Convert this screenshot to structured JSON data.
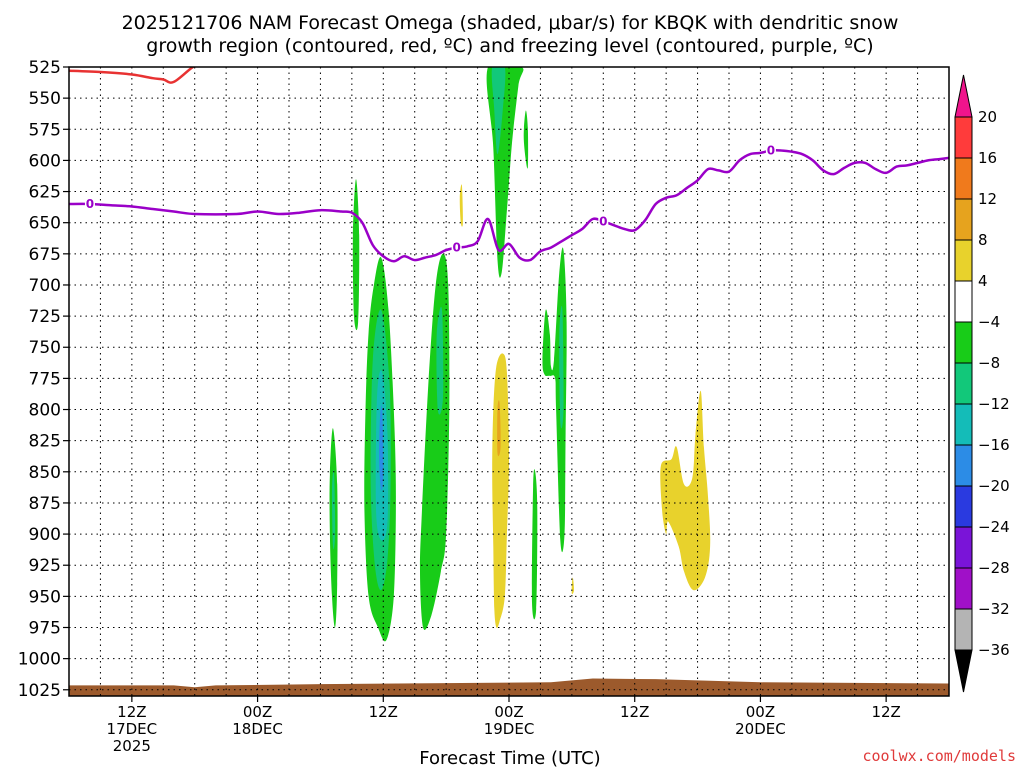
{
  "chart_data": {
    "type": "contour",
    "title_line1": "2025121706 NAM Forecast Omega (shaded, μbar/s) for KBQK with dendritic snow",
    "title_line2": "growth region (contoured, red, ºC) and freezing level (contoured, purple, ºC)",
    "xlabel": "Forecast Time (UTC)",
    "credit": "coolwx.com/models",
    "y_axis": {
      "ticks": [
        525,
        550,
        575,
        600,
        625,
        650,
        675,
        700,
        725,
        750,
        775,
        800,
        825,
        850,
        875,
        900,
        925,
        950,
        975,
        1000,
        1025
      ],
      "range": [
        525,
        1030
      ],
      "inverted": true,
      "grid": true
    },
    "x_axis": {
      "range_hours": [
        -6,
        78
      ],
      "ticks": [
        {
          "hour": 0,
          "l1": "12Z",
          "l2": "17DEC",
          "l3": "2025"
        },
        {
          "hour": 12,
          "l1": "00Z",
          "l2": "18DEC",
          "l3": ""
        },
        {
          "hour": 24,
          "l1": "12Z",
          "l2": "",
          "l3": ""
        },
        {
          "hour": 36,
          "l1": "00Z",
          "l2": "19DEC",
          "l3": ""
        },
        {
          "hour": 48,
          "l1": "12Z",
          "l2": "",
          "l3": ""
        },
        {
          "hour": 60,
          "l1": "00Z",
          "l2": "20DEC",
          "l3": ""
        },
        {
          "hour": 72,
          "l1": "12Z",
          "l2": "",
          "l3": ""
        }
      ],
      "grid": true
    },
    "colorbar": {
      "levels": [
        20,
        16,
        12,
        8,
        4,
        -4,
        -8,
        -12,
        -16,
        -20,
        -24,
        -28,
        -32,
        -36
      ],
      "colors": [
        "#ff3b3b",
        "#f07a1c",
        "#e6a31e",
        "#e8d22c",
        "#ffffff",
        "#18cc18",
        "#12c87a",
        "#14bcb8",
        "#2c8ce6",
        "#2a3ae0",
        "#7a14d8",
        "#a010c8",
        "#b4b4b4"
      ],
      "top_arrow_color": "#f0148c",
      "bottom_arrow_color": "#000000"
    },
    "freezing_level": {
      "label": "0",
      "color": "#9a00c8",
      "points": [
        [
          -6,
          635
        ],
        [
          -4,
          635
        ],
        [
          -2,
          636
        ],
        [
          0,
          637
        ],
        [
          2,
          639
        ],
        [
          4,
          641
        ],
        [
          6,
          643
        ],
        [
          10,
          643
        ],
        [
          12,
          641
        ],
        [
          14,
          643
        ],
        [
          16,
          642
        ],
        [
          18,
          640
        ],
        [
          20,
          641
        ],
        [
          21,
          642
        ],
        [
          22,
          650
        ],
        [
          23,
          668
        ],
        [
          24,
          677
        ],
        [
          25,
          681
        ],
        [
          26,
          677
        ],
        [
          27,
          680
        ],
        [
          28,
          678
        ],
        [
          29,
          676
        ],
        [
          30,
          672
        ],
        [
          31,
          670
        ],
        [
          32,
          669
        ],
        [
          33,
          665
        ],
        [
          34,
          647
        ],
        [
          35,
          672
        ],
        [
          36,
          667
        ],
        [
          37,
          678
        ],
        [
          38,
          680
        ],
        [
          39,
          673
        ],
        [
          40,
          670
        ],
        [
          41,
          665
        ],
        [
          42,
          660
        ],
        [
          43,
          655
        ],
        [
          44,
          647
        ],
        [
          45,
          649
        ],
        [
          46,
          652
        ],
        [
          47,
          655
        ],
        [
          48,
          656
        ],
        [
          49,
          648
        ],
        [
          50,
          635
        ],
        [
          51,
          630
        ],
        [
          52,
          628
        ],
        [
          53,
          622
        ],
        [
          54,
          616
        ],
        [
          55,
          607
        ],
        [
          56,
          608
        ],
        [
          57,
          609
        ],
        [
          58,
          600
        ],
        [
          59,
          595
        ],
        [
          60,
          594
        ],
        [
          61,
          592
        ],
        [
          62,
          592
        ],
        [
          63,
          593
        ],
        [
          64,
          595
        ],
        [
          65,
          600
        ],
        [
          66,
          608
        ],
        [
          67,
          611
        ],
        [
          68,
          606
        ],
        [
          69,
          602
        ],
        [
          70,
          602
        ],
        [
          71,
          607
        ],
        [
          72,
          610
        ],
        [
          73,
          605
        ],
        [
          74,
          604
        ],
        [
          75,
          602
        ],
        [
          76,
          600
        ],
        [
          77,
          599
        ],
        [
          78,
          598
        ]
      ]
    },
    "dgz_contour": {
      "color": "#e83232",
      "points": [
        [
          -6,
          528
        ],
        [
          -3,
          529
        ],
        [
          0,
          531
        ],
        [
          2,
          534
        ],
        [
          3,
          535
        ],
        [
          4,
          537
        ],
        [
          6,
          524
        ],
        [
          7,
          524
        ]
      ]
    },
    "omega_regions": [
      {
        "band": "-8",
        "pts": [
          [
            34.0,
            525
          ],
          [
            34.5,
            590
          ],
          [
            34.9,
            680
          ],
          [
            35.3,
            690
          ],
          [
            35.8,
            640
          ],
          [
            36.3,
            585
          ],
          [
            36.9,
            540
          ],
          [
            37.2,
            525
          ]
        ]
      },
      {
        "band": "-12",
        "pts": [
          [
            34.4,
            525
          ],
          [
            34.6,
            560
          ],
          [
            34.9,
            595
          ],
          [
            35.4,
            560
          ],
          [
            35.6,
            525
          ]
        ]
      },
      {
        "band": "-8",
        "pts": [
          [
            37.6,
            560
          ],
          [
            37.8,
            575
          ],
          [
            37.8,
            605
          ],
          [
            37.6,
            600
          ],
          [
            37.4,
            580
          ]
        ]
      },
      {
        "band": "-8",
        "pts": [
          [
            21.4,
            615
          ],
          [
            21.7,
            660
          ],
          [
            21.6,
            730
          ],
          [
            21.2,
            725
          ],
          [
            21.1,
            660
          ]
        ]
      },
      {
        "band": "-8",
        "pts": [
          [
            22.6,
            738
          ],
          [
            23.1,
            700
          ],
          [
            23.8,
            678
          ],
          [
            24.5,
            720
          ],
          [
            25.0,
            800
          ],
          [
            25.2,
            870
          ],
          [
            25.0,
            950
          ],
          [
            24.3,
            985
          ],
          [
            23.5,
            975
          ],
          [
            22.6,
            950
          ],
          [
            22.2,
            880
          ],
          [
            22.3,
            800
          ]
        ]
      },
      {
        "band": "-12",
        "pts": [
          [
            23.0,
            760
          ],
          [
            23.8,
            720
          ],
          [
            24.6,
            780
          ],
          [
            24.7,
            860
          ],
          [
            24.4,
            920
          ],
          [
            23.8,
            945
          ],
          [
            23.2,
            925
          ],
          [
            22.8,
            860
          ]
        ]
      },
      {
        "band": "-16",
        "pts": [
          [
            23.4,
            790
          ],
          [
            23.9,
            770
          ],
          [
            24.4,
            820
          ],
          [
            24.4,
            890
          ],
          [
            23.8,
            905
          ],
          [
            23.3,
            880
          ]
        ]
      },
      {
        "band": "-20",
        "pts": [
          [
            23.7,
            805
          ],
          [
            23.9,
            800
          ],
          [
            24.0,
            850
          ],
          [
            23.8,
            865
          ],
          [
            23.6,
            840
          ]
        ]
      },
      {
        "band": "-8",
        "pts": [
          [
            18.9,
            852
          ],
          [
            19.2,
            815
          ],
          [
            19.6,
            860
          ],
          [
            19.6,
            940
          ],
          [
            19.4,
            975
          ],
          [
            19.1,
            950
          ],
          [
            18.9,
            900
          ]
        ]
      },
      {
        "band": "-12",
        "pts": [
          [
            19.1,
            865
          ],
          [
            19.3,
            850
          ],
          [
            19.4,
            900
          ],
          [
            19.2,
            910
          ]
        ]
      },
      {
        "band": "-8",
        "pts": [
          [
            27.7,
            880
          ],
          [
            28.3,
            780
          ],
          [
            29.0,
            700
          ],
          [
            29.7,
            675
          ],
          [
            30.2,
            700
          ],
          [
            30.3,
            800
          ],
          [
            30.0,
            900
          ],
          [
            29.5,
            930
          ],
          [
            28.6,
            965
          ],
          [
            27.8,
            975
          ],
          [
            27.5,
            930
          ]
        ]
      },
      {
        "band": "-12",
        "pts": [
          [
            29.1,
            740
          ],
          [
            29.6,
            720
          ],
          [
            29.7,
            790
          ],
          [
            29.2,
            800
          ]
        ]
      },
      {
        "band": "-8",
        "pts": [
          [
            38.3,
            862
          ],
          [
            38.5,
            850
          ],
          [
            38.7,
            880
          ],
          [
            38.6,
            960
          ],
          [
            38.2,
            955
          ]
        ]
      },
      {
        "band": "-8",
        "pts": [
          [
            39.2,
            760
          ],
          [
            39.5,
            720
          ],
          [
            39.9,
            740
          ],
          [
            40.0,
            765
          ],
          [
            40.3,
            760
          ],
          [
            40.8,
            690
          ],
          [
            41.2,
            672
          ],
          [
            41.5,
            730
          ],
          [
            41.4,
            820
          ],
          [
            41.3,
            900
          ],
          [
            40.9,
            905
          ],
          [
            40.5,
            800
          ],
          [
            40.4,
            775
          ],
          [
            39.9,
            773
          ],
          [
            39.4,
            772
          ]
        ]
      },
      {
        "band": "-12",
        "pts": [
          [
            40.8,
            740
          ],
          [
            41.1,
            720
          ],
          [
            41.2,
            800
          ],
          [
            40.9,
            810
          ]
        ]
      },
      {
        "band": "4",
        "pts": [
          [
            34.8,
            765
          ],
          [
            35.4,
            755
          ],
          [
            35.8,
            770
          ],
          [
            36.0,
            840
          ],
          [
            35.8,
            900
          ],
          [
            35.6,
            950
          ],
          [
            35.1,
            970
          ],
          [
            34.8,
            975
          ],
          [
            34.6,
            960
          ],
          [
            34.5,
            910
          ],
          [
            34.4,
            850
          ],
          [
            34.5,
            800
          ]
        ]
      },
      {
        "band": "8",
        "pts": [
          [
            34.9,
            800
          ],
          [
            35.1,
            795
          ],
          [
            35.2,
            830
          ],
          [
            34.9,
            835
          ]
        ]
      },
      {
        "band": "4",
        "pts": [
          [
            31.3,
            630
          ],
          [
            31.5,
            620
          ],
          [
            31.6,
            650
          ],
          [
            31.4,
            650
          ]
        ]
      },
      {
        "band": "4",
        "pts": [
          [
            42.0,
            940
          ],
          [
            42.1,
            935
          ],
          [
            42.2,
            945
          ],
          [
            42.0,
            948
          ]
        ]
      },
      {
        "band": "4",
        "pts": [
          [
            50.5,
            845
          ],
          [
            51.5,
            840
          ],
          [
            52.0,
            830
          ],
          [
            52.7,
            860
          ],
          [
            53.5,
            855
          ],
          [
            53.8,
            820
          ],
          [
            54.3,
            785
          ],
          [
            54.6,
            830
          ],
          [
            55.0,
            870
          ],
          [
            55.2,
            910
          ],
          [
            54.7,
            935
          ],
          [
            53.6,
            945
          ],
          [
            52.7,
            930
          ],
          [
            52.2,
            910
          ],
          [
            51.2,
            890
          ],
          [
            51.0,
            900
          ],
          [
            50.6,
            880
          ]
        ]
      }
    ]
  }
}
